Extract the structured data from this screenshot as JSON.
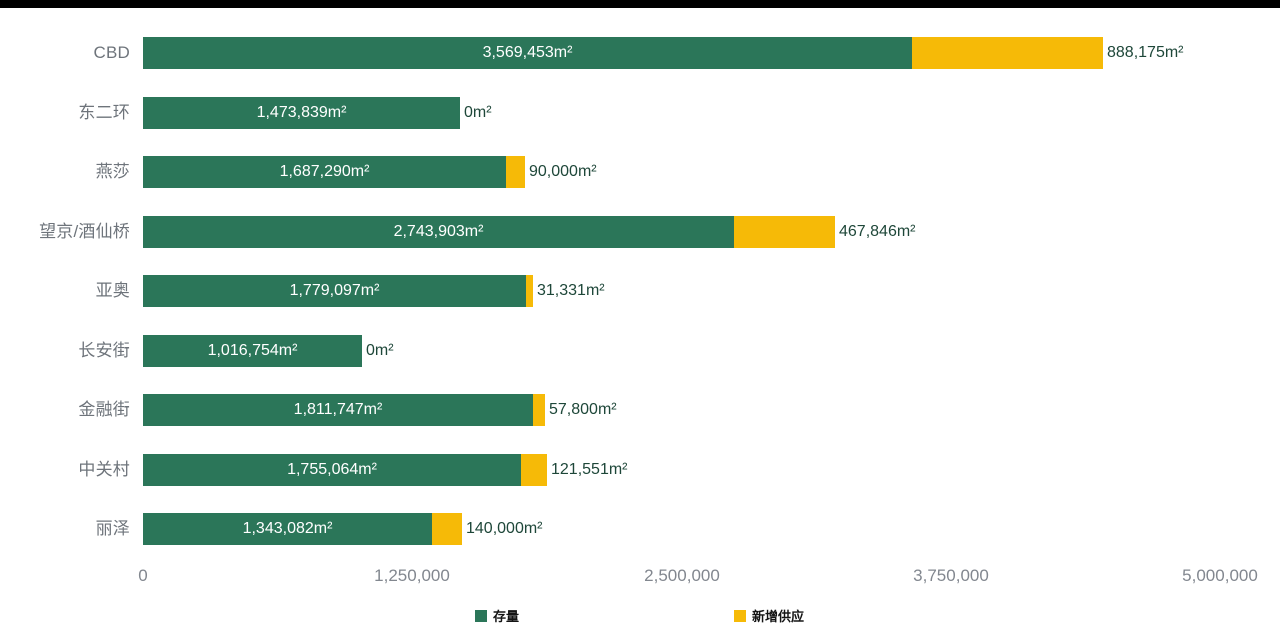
{
  "colors": {
    "stock_green": "#2B7659",
    "supply_yellow": "#F6BA07",
    "category_label": "#6E747B",
    "axis_label": "#82878F",
    "value_label_dark": "#1E4739",
    "inner_label": "#FFFFFF",
    "legend_text": "#141414",
    "background": "#FFFFFF",
    "top_border": "#000000"
  },
  "chart_data": {
    "type": "bar",
    "orientation": "horizontal",
    "stacked": true,
    "title": "",
    "xlabel": "",
    "ylabel": "",
    "grid": false,
    "unit": "m²",
    "categories": [
      "CBD",
      "东二环",
      "燕莎",
      "望京/酒仙桥",
      "亚奥",
      "长安街",
      "金融街",
      "中关村",
      "丽泽"
    ],
    "series": [
      {
        "name": "存量",
        "color": "#2B7659",
        "values": [
          3569453,
          1473839,
          1687290,
          2743903,
          1779097,
          1016754,
          1811747,
          1755064,
          1343082
        ],
        "labels": [
          "3,569,453m²",
          "1,473,839m²",
          "1,687,290m²",
          "2,743,903m²",
          "1,779,097m²",
          "1,016,754m²",
          "1,811,747m²",
          "1,755,064m²",
          "1,343,082m²"
        ],
        "label_position": "inside-center",
        "label_color": "#FFFFFF"
      },
      {
        "name": "新增供应",
        "color": "#F6BA07",
        "values": [
          888175,
          0,
          90000,
          467846,
          31331,
          0,
          57800,
          121551,
          140000
        ],
        "labels": [
          "888,175m²",
          "0m²",
          "90,000m²",
          "467,846m²",
          "31,331m²",
          "0m²",
          "57,800m²",
          "121,551m²",
          "140,000m²"
        ],
        "label_position": "outside-right",
        "label_color": "#1E4739"
      }
    ],
    "x_axis": {
      "min": 0,
      "max": 5000000,
      "tick_labels": [
        "0",
        "1,250,000",
        "2,500,000",
        "3,750,000",
        "5,000,000"
      ],
      "tick_values": [
        0,
        1250000,
        2500000,
        3750000,
        5000000
      ]
    },
    "legend": {
      "position": "bottom",
      "items": [
        {
          "label": "存量",
          "color": "#2B7659"
        },
        {
          "label": "新增供应",
          "color": "#F6BA07"
        }
      ]
    }
  }
}
